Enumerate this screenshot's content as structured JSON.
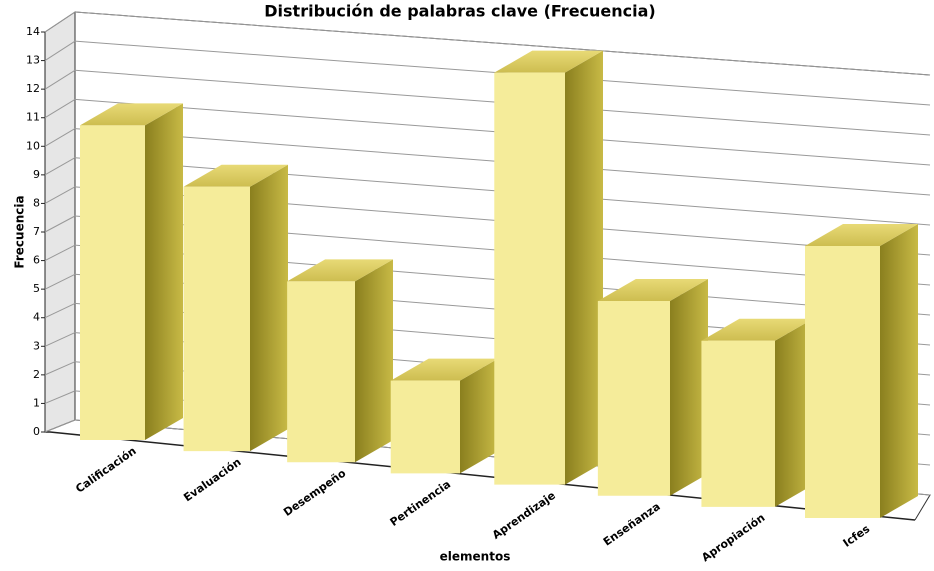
{
  "chart_data": {
    "type": "bar3d",
    "title": "Distribución de palabras clave (Frecuencia)",
    "x_label": "elementos",
    "y_label": "Frecuencia",
    "categories": [
      "Calificación",
      "Evaluación",
      "Desempeño",
      "Pertinencia",
      "Aprendizaje",
      "Enseñanza",
      "Apropiación",
      "Icfes"
    ],
    "values": [
      11,
      9,
      6,
      3,
      13,
      6,
      5,
      8
    ],
    "color": "#f5ec9a",
    "ylim": [
      0,
      14
    ],
    "yticks": [
      0,
      1,
      2,
      3,
      4,
      5,
      6,
      7,
      8,
      9,
      10,
      11,
      12,
      13,
      14
    ],
    "grid": true
  }
}
